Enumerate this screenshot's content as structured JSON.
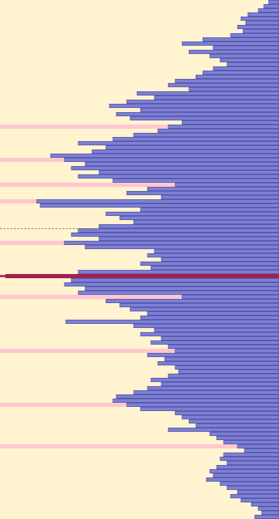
{
  "chart_data": {
    "type": "bar",
    "orientation": "horizontal",
    "anchor": "right",
    "xlim": [
      0,
      403
    ],
    "color": "#7d80d2",
    "edge_color": "#3f3f9a",
    "highlight_color": "#ffc7cf",
    "selected_color": "#a3204c",
    "background": "#fff3d0",
    "highlight": [
      30,
      38,
      44,
      48,
      58,
      71,
      84,
      97,
      107
    ],
    "selected": 66,
    "values": [
      15,
      22,
      30,
      45,
      55,
      48,
      60,
      52,
      70,
      110,
      140,
      95,
      130,
      100,
      85,
      75,
      95,
      110,
      120,
      150,
      160,
      130,
      205,
      180,
      220,
      245,
      200,
      235,
      215,
      140,
      160,
      175,
      210,
      240,
      290,
      250,
      270,
      330,
      310,
      280,
      300,
      260,
      290,
      240,
      150,
      190,
      220,
      170,
      350,
      345,
      200,
      250,
      230,
      210,
      260,
      290,
      300,
      260,
      310,
      280,
      180,
      190,
      170,
      200,
      185,
      290,
      395,
      300,
      310,
      280,
      290,
      140,
      250,
      230,
      215,
      190,
      200,
      308,
      210,
      180,
      200,
      170,
      185,
      160,
      150,
      190,
      165,
      175,
      150,
      145,
      160,
      185,
      170,
      190,
      210,
      235,
      240,
      220,
      200,
      150,
      140,
      130,
      120,
      160,
      100,
      90,
      80,
      60,
      50,
      80,
      85,
      75,
      90,
      100,
      95,
      105,
      85,
      75,
      60,
      70,
      55,
      40,
      30,
      25,
      35
    ]
  }
}
